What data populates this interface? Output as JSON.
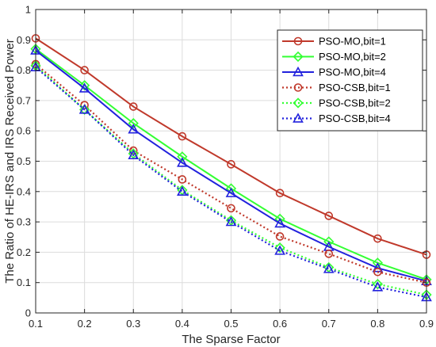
{
  "chart_data": {
    "type": "line",
    "title": "",
    "xlabel": "The Sparse Factor",
    "ylabel": "The Ratio of HE-IRS and IRS Received Power",
    "xlim": [
      0.1,
      0.9
    ],
    "ylim": [
      0,
      1
    ],
    "xticks": [
      "0.1",
      "0.2",
      "0.3",
      "0.4",
      "0.5",
      "0.6",
      "0.7",
      "0.8",
      "0.9"
    ],
    "yticks": [
      "0",
      "0.1",
      "0.2",
      "0.3",
      "0.4",
      "0.5",
      "0.6",
      "0.7",
      "0.8",
      "0.9",
      "1"
    ],
    "grid": true,
    "legend_position": "top-right",
    "x": [
      0.1,
      0.2,
      0.3,
      0.4,
      0.5,
      0.6,
      0.7,
      0.8,
      0.9
    ],
    "series": [
      {
        "name": "PSO-MO,bit=1",
        "color": "#c0392b",
        "style": "solid",
        "marker": "circle",
        "values": [
          0.905,
          0.8,
          0.68,
          0.582,
          0.49,
          0.395,
          0.32,
          0.245,
          0.192
        ]
      },
      {
        "name": "PSO-MO,bit=2",
        "color": "#33ff33",
        "style": "solid",
        "marker": "diamond",
        "values": [
          0.87,
          0.75,
          0.625,
          0.515,
          0.41,
          0.31,
          0.235,
          0.165,
          0.11
        ]
      },
      {
        "name": "PSO-MO,bit=4",
        "color": "#2222dd",
        "style": "solid",
        "marker": "triangle",
        "values": [
          0.865,
          0.74,
          0.605,
          0.495,
          0.395,
          0.295,
          0.218,
          0.148,
          0.105
        ]
      },
      {
        "name": "PSO-CSB,bit=1",
        "color": "#c0392b",
        "style": "dotted",
        "marker": "circle",
        "values": [
          0.82,
          0.685,
          0.535,
          0.44,
          0.345,
          0.252,
          0.195,
          0.135,
          0.1
        ]
      },
      {
        "name": "PSO-CSB,bit=2",
        "color": "#33ff33",
        "style": "dotted",
        "marker": "diamond",
        "values": [
          0.815,
          0.67,
          0.525,
          0.405,
          0.305,
          0.215,
          0.15,
          0.095,
          0.06
        ]
      },
      {
        "name": "PSO-CSB,bit=4",
        "color": "#2222dd",
        "style": "dotted",
        "marker": "triangle",
        "values": [
          0.81,
          0.67,
          0.52,
          0.4,
          0.3,
          0.205,
          0.145,
          0.085,
          0.052
        ]
      }
    ]
  }
}
